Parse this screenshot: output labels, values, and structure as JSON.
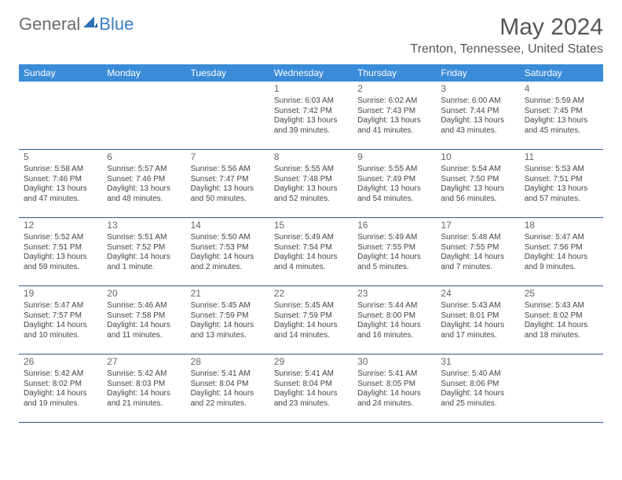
{
  "brand": {
    "general": "General",
    "blue": "Blue"
  },
  "title": "May 2024",
  "location": "Trenton, Tennessee, United States",
  "dow": [
    "Sunday",
    "Monday",
    "Tuesday",
    "Wednesday",
    "Thursday",
    "Friday",
    "Saturday"
  ],
  "colors": {
    "header_bg": "#3a8bd8",
    "header_text": "#ffffff",
    "row_border": "#2c5b8a",
    "logo_gray": "#6b6b6b",
    "logo_blue": "#3a7fc4",
    "text": "#444444",
    "title": "#555555",
    "background": "#ffffff"
  },
  "typography": {
    "title_fontsize": 30,
    "location_fontsize": 16,
    "dow_fontsize": 12,
    "daynum_fontsize": 12,
    "cell_fontsize": 10
  },
  "weeks": [
    [
      {
        "n": "",
        "l1": "",
        "l2": "",
        "l3": ""
      },
      {
        "n": "",
        "l1": "",
        "l2": "",
        "l3": ""
      },
      {
        "n": "",
        "l1": "",
        "l2": "",
        "l3": ""
      },
      {
        "n": "1",
        "l1": "Sunrise: 6:03 AM",
        "l2": "Sunset: 7:42 PM",
        "l3": "Daylight: 13 hours and 39 minutes."
      },
      {
        "n": "2",
        "l1": "Sunrise: 6:02 AM",
        "l2": "Sunset: 7:43 PM",
        "l3": "Daylight: 13 hours and 41 minutes."
      },
      {
        "n": "3",
        "l1": "Sunrise: 6:00 AM",
        "l2": "Sunset: 7:44 PM",
        "l3": "Daylight: 13 hours and 43 minutes."
      },
      {
        "n": "4",
        "l1": "Sunrise: 5:59 AM",
        "l2": "Sunset: 7:45 PM",
        "l3": "Daylight: 13 hours and 45 minutes."
      }
    ],
    [
      {
        "n": "5",
        "l1": "Sunrise: 5:58 AM",
        "l2": "Sunset: 7:46 PM",
        "l3": "Daylight: 13 hours and 47 minutes."
      },
      {
        "n": "6",
        "l1": "Sunrise: 5:57 AM",
        "l2": "Sunset: 7:46 PM",
        "l3": "Daylight: 13 hours and 48 minutes."
      },
      {
        "n": "7",
        "l1": "Sunrise: 5:56 AM",
        "l2": "Sunset: 7:47 PM",
        "l3": "Daylight: 13 hours and 50 minutes."
      },
      {
        "n": "8",
        "l1": "Sunrise: 5:55 AM",
        "l2": "Sunset: 7:48 PM",
        "l3": "Daylight: 13 hours and 52 minutes."
      },
      {
        "n": "9",
        "l1": "Sunrise: 5:55 AM",
        "l2": "Sunset: 7:49 PM",
        "l3": "Daylight: 13 hours and 54 minutes."
      },
      {
        "n": "10",
        "l1": "Sunrise: 5:54 AM",
        "l2": "Sunset: 7:50 PM",
        "l3": "Daylight: 13 hours and 56 minutes."
      },
      {
        "n": "11",
        "l1": "Sunrise: 5:53 AM",
        "l2": "Sunset: 7:51 PM",
        "l3": "Daylight: 13 hours and 57 minutes."
      }
    ],
    [
      {
        "n": "12",
        "l1": "Sunrise: 5:52 AM",
        "l2": "Sunset: 7:51 PM",
        "l3": "Daylight: 13 hours and 59 minutes."
      },
      {
        "n": "13",
        "l1": "Sunrise: 5:51 AM",
        "l2": "Sunset: 7:52 PM",
        "l3": "Daylight: 14 hours and 1 minute."
      },
      {
        "n": "14",
        "l1": "Sunrise: 5:50 AM",
        "l2": "Sunset: 7:53 PM",
        "l3": "Daylight: 14 hours and 2 minutes."
      },
      {
        "n": "15",
        "l1": "Sunrise: 5:49 AM",
        "l2": "Sunset: 7:54 PM",
        "l3": "Daylight: 14 hours and 4 minutes."
      },
      {
        "n": "16",
        "l1": "Sunrise: 5:49 AM",
        "l2": "Sunset: 7:55 PM",
        "l3": "Daylight: 14 hours and 5 minutes."
      },
      {
        "n": "17",
        "l1": "Sunrise: 5:48 AM",
        "l2": "Sunset: 7:55 PM",
        "l3": "Daylight: 14 hours and 7 minutes."
      },
      {
        "n": "18",
        "l1": "Sunrise: 5:47 AM",
        "l2": "Sunset: 7:56 PM",
        "l3": "Daylight: 14 hours and 9 minutes."
      }
    ],
    [
      {
        "n": "19",
        "l1": "Sunrise: 5:47 AM",
        "l2": "Sunset: 7:57 PM",
        "l3": "Daylight: 14 hours and 10 minutes."
      },
      {
        "n": "20",
        "l1": "Sunrise: 5:46 AM",
        "l2": "Sunset: 7:58 PM",
        "l3": "Daylight: 14 hours and 11 minutes."
      },
      {
        "n": "21",
        "l1": "Sunrise: 5:45 AM",
        "l2": "Sunset: 7:59 PM",
        "l3": "Daylight: 14 hours and 13 minutes."
      },
      {
        "n": "22",
        "l1": "Sunrise: 5:45 AM",
        "l2": "Sunset: 7:59 PM",
        "l3": "Daylight: 14 hours and 14 minutes."
      },
      {
        "n": "23",
        "l1": "Sunrise: 5:44 AM",
        "l2": "Sunset: 8:00 PM",
        "l3": "Daylight: 14 hours and 16 minutes."
      },
      {
        "n": "24",
        "l1": "Sunrise: 5:43 AM",
        "l2": "Sunset: 8:01 PM",
        "l3": "Daylight: 14 hours and 17 minutes."
      },
      {
        "n": "25",
        "l1": "Sunrise: 5:43 AM",
        "l2": "Sunset: 8:02 PM",
        "l3": "Daylight: 14 hours and 18 minutes."
      }
    ],
    [
      {
        "n": "26",
        "l1": "Sunrise: 5:42 AM",
        "l2": "Sunset: 8:02 PM",
        "l3": "Daylight: 14 hours and 19 minutes."
      },
      {
        "n": "27",
        "l1": "Sunrise: 5:42 AM",
        "l2": "Sunset: 8:03 PM",
        "l3": "Daylight: 14 hours and 21 minutes."
      },
      {
        "n": "28",
        "l1": "Sunrise: 5:41 AM",
        "l2": "Sunset: 8:04 PM",
        "l3": "Daylight: 14 hours and 22 minutes."
      },
      {
        "n": "29",
        "l1": "Sunrise: 5:41 AM",
        "l2": "Sunset: 8:04 PM",
        "l3": "Daylight: 14 hours and 23 minutes."
      },
      {
        "n": "30",
        "l1": "Sunrise: 5:41 AM",
        "l2": "Sunset: 8:05 PM",
        "l3": "Daylight: 14 hours and 24 minutes."
      },
      {
        "n": "31",
        "l1": "Sunrise: 5:40 AM",
        "l2": "Sunset: 8:06 PM",
        "l3": "Daylight: 14 hours and 25 minutes."
      },
      {
        "n": "",
        "l1": "",
        "l2": "",
        "l3": ""
      }
    ]
  ]
}
